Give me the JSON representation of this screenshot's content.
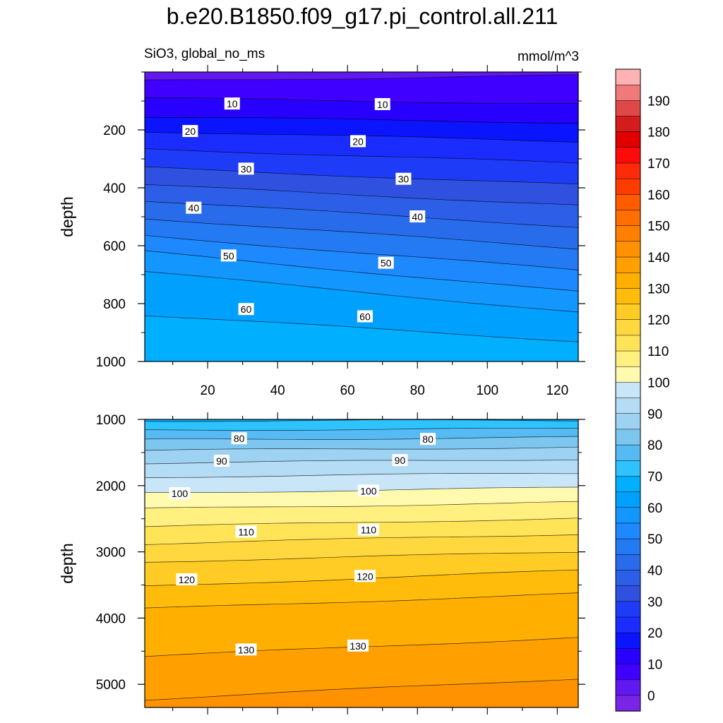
{
  "figure": {
    "title": "b.e20.B1850.f09_g17.pi_control.all.211",
    "left_subtitle": "SiO3, global_no_ms",
    "right_subtitle": "mmol/m^3"
  },
  "chart_data": [
    {
      "type": "contour",
      "panel": "upper",
      "ylabel": "depth",
      "xlabel": "",
      "xlim": [
        2,
        126
      ],
      "ylim": [
        1000,
        0
      ],
      "x_ticks": [
        20,
        40,
        60,
        80,
        100,
        120
      ],
      "y_ticks": [
        200,
        400,
        600,
        800,
        1000
      ],
      "contour_interval": 5,
      "surface": {
        "x": [
          2,
          126
        ],
        "depth_at_value": {
          "5": [
            30,
            12
          ],
          "10": [
            90,
            110
          ],
          "15": [
            155,
            175
          ],
          "20": [
            205,
            240
          ],
          "25": [
            265,
            315
          ],
          "30": [
            330,
            390
          ],
          "35": [
            390,
            460
          ],
          "40": [
            445,
            535
          ],
          "45": [
            505,
            610
          ],
          "50": [
            565,
            685
          ],
          "55": [
            620,
            760
          ],
          "60": [
            690,
            830
          ],
          "65": [
            840,
            930
          ]
        },
        "labels": [
          {
            "value": "10",
            "x": 27,
            "y": 110
          },
          {
            "value": "10",
            "x": 70,
            "y": 112
          },
          {
            "value": "20",
            "x": 15,
            "y": 205
          },
          {
            "value": "20",
            "x": 63,
            "y": 240
          },
          {
            "value": "30",
            "x": 31,
            "y": 335
          },
          {
            "value": "30",
            "x": 76,
            "y": 370
          },
          {
            "value": "40",
            "x": 16,
            "y": 470
          },
          {
            "value": "40",
            "x": 80,
            "y": 500
          },
          {
            "value": "50",
            "x": 26,
            "y": 635
          },
          {
            "value": "50",
            "x": 71,
            "y": 660
          },
          {
            "value": "60",
            "x": 31,
            "y": 820
          },
          {
            "value": "60",
            "x": 65,
            "y": 845
          }
        ]
      }
    },
    {
      "type": "contour",
      "panel": "lower",
      "ylabel": "depth",
      "xlabel": "",
      "xlim": [
        2,
        126
      ],
      "ylim": [
        5350,
        1000
      ],
      "y_ticks": [
        1000,
        2000,
        3000,
        4000,
        5000
      ],
      "contour_interval": 5,
      "surface": {
        "x": [
          2,
          126
        ],
        "depth_at_value": {
          "70": [
            1020,
            1015
          ],
          "75": [
            1160,
            1140
          ],
          "80": [
            1310,
            1270
          ],
          "85": [
            1470,
            1420
          ],
          "90": [
            1660,
            1600
          ],
          "95": [
            1870,
            1810
          ],
          "100": [
            2110,
            2030
          ],
          "105": [
            2350,
            2250
          ],
          "110": [
            2620,
            2490
          ],
          "115": [
            2880,
            2730
          ],
          "120": [
            3150,
            3000
          ],
          "125": [
            3520,
            3280
          ],
          "130": [
            3860,
            3630
          ],
          "135": [
            4580,
            4290
          ],
          "140": [
            5230,
            4910
          ]
        },
        "labels": [
          {
            "value": "80",
            "x": 29,
            "y": 1290
          },
          {
            "value": "80",
            "x": 83,
            "y": 1300
          },
          {
            "value": "90",
            "x": 24,
            "y": 1630
          },
          {
            "value": "90",
            "x": 75,
            "y": 1620
          },
          {
            "value": "100",
            "x": 12,
            "y": 2120
          },
          {
            "value": "100",
            "x": 66,
            "y": 2080
          },
          {
            "value": "110",
            "x": 31,
            "y": 2700
          },
          {
            "value": "110",
            "x": 66,
            "y": 2670
          },
          {
            "value": "120",
            "x": 14,
            "y": 3420
          },
          {
            "value": "120",
            "x": 65,
            "y": 3370
          },
          {
            "value": "130",
            "x": 31,
            "y": 4480
          },
          {
            "value": "130",
            "x": 63,
            "y": 4420
          }
        ]
      }
    }
  ],
  "colorbar": {
    "tick_labels": [
      "0",
      "10",
      "20",
      "30",
      "40",
      "50",
      "60",
      "70",
      "80",
      "90",
      "100",
      "110",
      "120",
      "130",
      "140",
      "150",
      "160",
      "170",
      "180",
      "190"
    ],
    "levels_top_to_bottom": [
      {
        "color": "#fdb3b3"
      },
      {
        "color": "#f07a7a"
      },
      {
        "color": "#e04848"
      },
      {
        "color": "#d41c1c"
      },
      {
        "color": "#e00000"
      },
      {
        "color": "#ff0a0a"
      },
      {
        "color": "#ff2a0a"
      },
      {
        "color": "#ff3c00"
      },
      {
        "color": "#ff5c00"
      },
      {
        "color": "#ff6e00"
      },
      {
        "color": "#ff8000"
      },
      {
        "color": "#ff9200"
      },
      {
        "color": "#ffa000"
      },
      {
        "color": "#ffaf00"
      },
      {
        "color": "#ffbc0a"
      },
      {
        "color": "#ffcc25"
      },
      {
        "color": "#ffd840"
      },
      {
        "color": "#ffe458"
      },
      {
        "color": "#fff080"
      },
      {
        "color": "#fffaae"
      },
      {
        "color": "#c8e6f8"
      },
      {
        "color": "#b4dcf4"
      },
      {
        "color": "#9dd2f2"
      },
      {
        "color": "#7dc6f0"
      },
      {
        "color": "#55bbf2"
      },
      {
        "color": "#2ec2ff"
      },
      {
        "color": "#00b0ff"
      },
      {
        "color": "#00a0ff"
      },
      {
        "color": "#1496ff"
      },
      {
        "color": "#1e88ff"
      },
      {
        "color": "#247af2"
      },
      {
        "color": "#286cec"
      },
      {
        "color": "#2c5ee8"
      },
      {
        "color": "#3050e0"
      },
      {
        "color": "#1e3cf8"
      },
      {
        "color": "#1a2cff"
      },
      {
        "color": "#0a14ff"
      },
      {
        "color": "#2800ff"
      },
      {
        "color": "#4000ff"
      },
      {
        "color": "#6218f0"
      },
      {
        "color": "#7a24e8"
      }
    ]
  }
}
